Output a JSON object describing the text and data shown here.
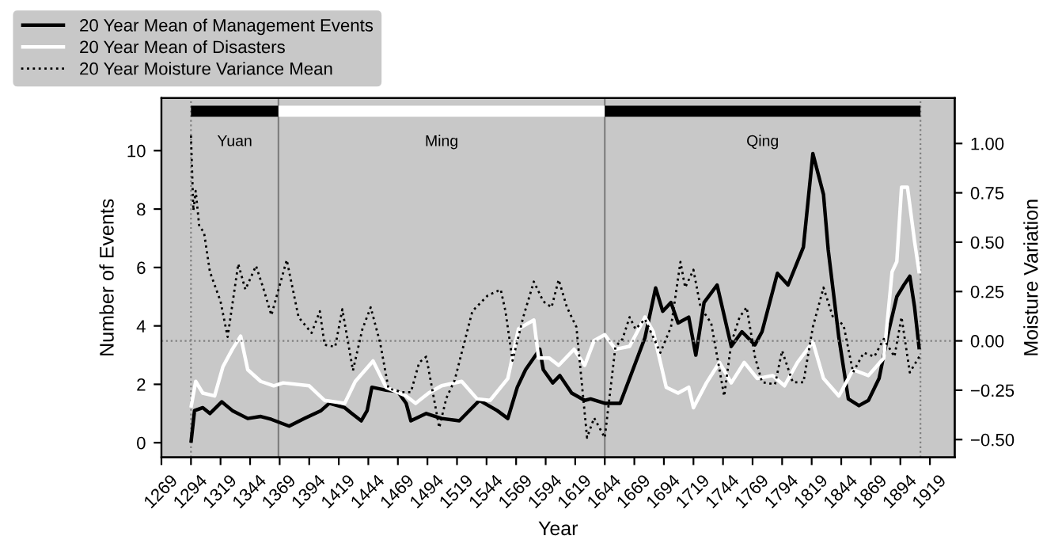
{
  "chart_data": {
    "type": "line",
    "xlabel": "Year",
    "ylabel": "Number of Events",
    "y2label": "Moisture Variation",
    "xlim": [
      1269,
      1940
    ],
    "xticks": [
      1269,
      1294,
      1319,
      1344,
      1369,
      1394,
      1419,
      1444,
      1469,
      1494,
      1519,
      1544,
      1569,
      1594,
      1619,
      1644,
      1669,
      1694,
      1719,
      1744,
      1769,
      1794,
      1819,
      1844,
      1869,
      1894,
      1919
    ],
    "ylim": [
      -0.5,
      11.8
    ],
    "yticks": [
      0,
      2,
      4,
      6,
      8,
      10
    ],
    "y2lim": [
      -0.59,
      1.23
    ],
    "y2ticks": [
      {
        "value": -0.5,
        "label": "−0.50"
      },
      {
        "value": -0.25,
        "label": "−0.25"
      },
      {
        "value": 0,
        "label": "0.00"
      },
      {
        "value": 0.25,
        "label": "0.25"
      },
      {
        "value": 0.5,
        "label": "0.50"
      },
      {
        "value": 0.75,
        "label": "0.75"
      },
      {
        "value": 1.0,
        "label": "1.00"
      }
    ],
    "legend": "top left",
    "grid": false,
    "series": [
      {
        "name": "20 Year Mean of Management Events",
        "color": "#000000",
        "line_style": "solid",
        "x": [
          1294,
          1297,
          1304,
          1310,
          1320,
          1329,
          1342,
          1353,
          1362,
          1377,
          1390,
          1404,
          1411,
          1424,
          1430,
          1438,
          1443,
          1447,
          1459,
          1469,
          1476,
          1480,
          1493,
          1506,
          1521,
          1538,
          1553,
          1562,
          1570,
          1577,
          1589,
          1592,
          1600,
          1606,
          1616,
          1627,
          1632,
          1644,
          1657,
          1665,
          1678,
          1687,
          1693,
          1700,
          1706,
          1715,
          1721,
          1728,
          1739,
          1751,
          1760,
          1771,
          1777,
          1790,
          1799,
          1812,
          1820,
          1829,
          1833,
          1842,
          1850,
          1859,
          1867,
          1876,
          1884,
          1891,
          1897,
          1902,
          1906,
          1910
        ],
        "values": [
          0,
          1.1,
          1.2,
          1.0,
          1.4,
          1.1,
          0.83,
          0.9,
          0.8,
          0.57,
          0.83,
          1.1,
          1.35,
          1.2,
          1.0,
          0.75,
          1.1,
          1.9,
          1.8,
          1.75,
          1.35,
          0.75,
          1.0,
          0.83,
          0.75,
          1.45,
          1.1,
          0.83,
          1.9,
          2.5,
          3.2,
          2.5,
          2.05,
          2.3,
          1.7,
          1.45,
          1.5,
          1.35,
          1.35,
          2.2,
          3.6,
          5.3,
          4.5,
          4.8,
          4.1,
          4.3,
          3.0,
          4.8,
          5.4,
          3.3,
          3.8,
          3.35,
          3.8,
          5.8,
          5.4,
          6.7,
          9.9,
          8.5,
          6.6,
          3.6,
          1.5,
          1.27,
          1.45,
          2.2,
          3.8,
          5.0,
          5.4,
          5.7,
          4.65,
          3.2
        ]
      },
      {
        "name": "20 Year Mean of Disasters",
        "color": "#ffffff",
        "line_style": "solid",
        "x": [
          1294,
          1298,
          1304,
          1314,
          1321,
          1329,
          1336,
          1342,
          1353,
          1364,
          1372,
          1394,
          1407,
          1424,
          1433,
          1448,
          1459,
          1476,
          1484,
          1495,
          1506,
          1523,
          1536,
          1547,
          1562,
          1571,
          1584,
          1588,
          1597,
          1605,
          1618,
          1627,
          1635,
          1644,
          1653,
          1665,
          1678,
          1685,
          1696,
          1706,
          1715,
          1719,
          1730,
          1741,
          1751,
          1762,
          1773,
          1786,
          1796,
          1807,
          1820,
          1829,
          1842,
          1854,
          1867,
          1880,
          1887,
          1891,
          1895,
          1900,
          1906,
          1910
        ],
        "values": [
          1.2,
          2.1,
          1.7,
          1.6,
          2.6,
          3.2,
          3.65,
          2.5,
          2.1,
          1.95,
          2.05,
          1.95,
          1.45,
          1.35,
          2.1,
          2.8,
          1.9,
          1.6,
          1.35,
          1.7,
          1.95,
          2.1,
          1.5,
          1.45,
          2.2,
          3.9,
          4.2,
          2.9,
          2.9,
          2.65,
          3.2,
          2.65,
          3.5,
          3.7,
          3.2,
          3.3,
          4.3,
          3.8,
          1.9,
          1.7,
          1.9,
          1.2,
          2.05,
          2.75,
          2.05,
          2.75,
          2.2,
          2.3,
          1.95,
          2.75,
          3.45,
          2.2,
          1.6,
          2.5,
          2.3,
          2.9,
          5.85,
          6.2,
          8.75,
          8.75,
          6.9,
          5.8
        ]
      },
      {
        "name": "20 Year Moisture Variance Mean",
        "color": "#000000",
        "line_style": "dotted",
        "axis": "y2",
        "x": [
          1294,
          1296,
          1298,
          1301,
          1305,
          1310,
          1319,
          1325,
          1334,
          1340,
          1349,
          1355,
          1362,
          1375,
          1385,
          1396,
          1403,
          1407,
          1416,
          1422,
          1431,
          1439,
          1446,
          1454,
          1461,
          1472,
          1480,
          1487,
          1493,
          1504,
          1510,
          1517,
          1532,
          1545,
          1556,
          1560,
          1566,
          1575,
          1584,
          1592,
          1599,
          1605,
          1612,
          1620,
          1629,
          1635,
          1644,
          1653,
          1659,
          1665,
          1670,
          1678,
          1691,
          1700,
          1708,
          1712,
          1719,
          1725,
          1734,
          1745,
          1751,
          1758,
          1764,
          1771,
          1777,
          1788,
          1794,
          1803,
          1812,
          1820,
          1829,
          1837,
          1846,
          1854,
          1863,
          1872,
          1880,
          1889,
          1895,
          1902,
          1910
        ],
        "values": [
          1.04,
          0.66,
          0.76,
          0.58,
          0.55,
          0.35,
          0.2,
          0.02,
          0.39,
          0.26,
          0.38,
          0.27,
          0.13,
          0.41,
          0.12,
          0.04,
          0.15,
          -0.02,
          -0.03,
          0.16,
          -0.15,
          0.06,
          0.17,
          -0.01,
          -0.24,
          -0.26,
          -0.26,
          -0.11,
          -0.08,
          -0.44,
          -0.29,
          -0.2,
          0.15,
          0.23,
          0.26,
          0.15,
          -0.1,
          0.12,
          0.3,
          0.2,
          0.17,
          0.31,
          0.17,
          0.07,
          -0.49,
          -0.39,
          -0.49,
          -0.03,
          0.01,
          0.12,
          0.06,
          0.11,
          -0.06,
          0.07,
          0.4,
          0.27,
          0.36,
          0.17,
          0.09,
          -0.28,
          -0.01,
          0.12,
          0.17,
          -0.08,
          -0.21,
          -0.22,
          -0.05,
          -0.21,
          -0.21,
          0.07,
          0.27,
          0.12,
          0.08,
          -0.16,
          -0.06,
          -0.08,
          0.01,
          -0.08,
          0.12,
          -0.16,
          -0.08
        ]
      },
      {
        "color": "#000000",
        "line_style": "solid",
        "x": [
          1294,
          1368
        ],
        "values": [
          11.35,
          11.35
        ]
      },
      {
        "color": "#ffffff",
        "line_style": "solid",
        "x": [
          1368,
          1644
        ],
        "values": [
          11.35,
          11.35
        ]
      },
      {
        "color": "#000000",
        "line_style": "solid",
        "x": [
          1644,
          1911
        ],
        "values": [
          11.35,
          11.35
        ]
      }
    ],
    "ref_lines": [
      {
        "axis": "x",
        "value": 1294,
        "color": "#808080",
        "line_style": "dotted"
      },
      {
        "axis": "x",
        "value": 1368,
        "color": "#808080",
        "line_style": "solid"
      },
      {
        "axis": "x",
        "value": 1644,
        "color": "#808080",
        "line_style": "solid"
      },
      {
        "axis": "x",
        "value": 1911,
        "color": "#808080",
        "line_style": "dotted"
      },
      {
        "axis": "y2",
        "value": 0,
        "color": "#808080",
        "line_style": "dotted"
      }
    ],
    "annotations": [
      "Yuan",
      "Ming",
      "Qing"
    ]
  }
}
